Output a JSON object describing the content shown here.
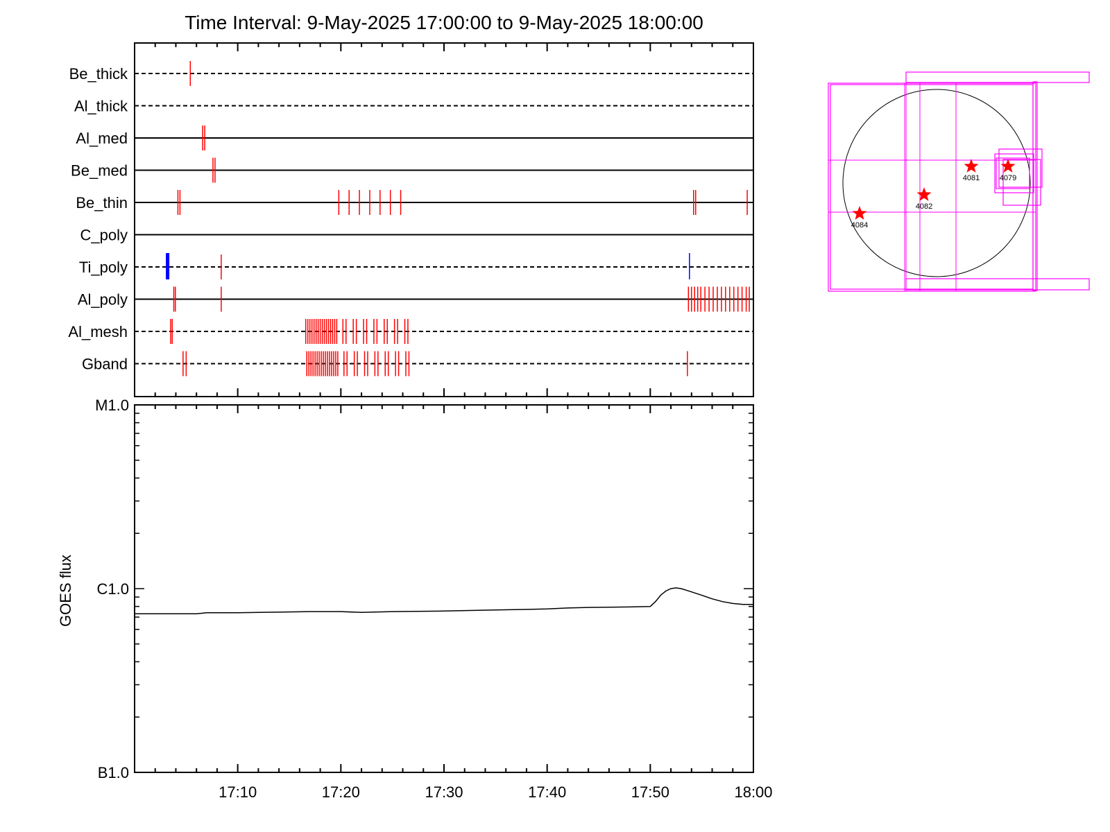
{
  "title": "Time Interval:  9-May-2025 17:00:00 to  9-May-2025 18:00:00",
  "colors": {
    "line": "#000000",
    "red_event": "#ff0000",
    "blue_event": "#0000ff",
    "fov_box": "#ff00ff",
    "star": "#ff0000"
  },
  "chart_data": [
    {
      "type": "scatter",
      "name": "filter timeline",
      "x_unit": "minutes after 17:00",
      "xlim": [
        0,
        60
      ],
      "categories": [
        "Be_thick",
        "Al_thick",
        "Al_med",
        "Be_med",
        "Be_thin",
        "C_poly",
        "Ti_poly",
        "Al_poly",
        "Al_mesh",
        "Gband"
      ],
      "line_style": [
        "dashed",
        "dashed",
        "solid",
        "solid",
        "solid",
        "solid",
        "dashed",
        "solid",
        "dashed",
        "dashed"
      ],
      "events": {
        "Be_thick": {
          "red": [
            5.4
          ]
        },
        "Al_thick": {
          "red": []
        },
        "Al_med": {
          "red": [
            6.6,
            6.8
          ]
        },
        "Be_med": {
          "red": [
            7.6,
            7.8
          ]
        },
        "Be_thin": {
          "red": [
            4.2,
            4.4,
            19.8,
            20.8,
            21.8,
            22.8,
            23.8,
            24.8,
            25.8,
            54.2,
            54.4,
            59.4
          ]
        },
        "C_poly": {
          "red": []
        },
        "Ti_poly": {
          "red": [
            8.4
          ],
          "blue_thick": [
            3.2
          ],
          "blue": [
            53.8
          ]
        },
        "Al_poly": {
          "red": [
            3.8,
            3.95,
            8.4,
            53.7,
            54.0,
            54.3,
            54.6,
            54.9,
            55.3,
            55.7,
            56.1,
            56.5,
            56.9,
            57.3,
            57.7,
            58.1,
            58.5,
            58.9,
            59.3,
            59.6
          ]
        },
        "Al_mesh": {
          "red": [
            3.5,
            3.65,
            16.6,
            16.8,
            17.0,
            17.2,
            17.4,
            17.6,
            17.8,
            18.0,
            18.2,
            18.4,
            18.6,
            18.8,
            19.0,
            19.2,
            19.4,
            19.6,
            20.2,
            20.5,
            21.2,
            21.5,
            22.2,
            22.5,
            23.2,
            23.5,
            24.2,
            24.5,
            25.2,
            25.5,
            26.2,
            26.5
          ]
        },
        "Gband": {
          "red": [
            4.7,
            5.0,
            16.7,
            16.9,
            17.1,
            17.3,
            17.5,
            17.7,
            17.9,
            18.1,
            18.3,
            18.5,
            18.7,
            18.9,
            19.1,
            19.3,
            19.5,
            19.7,
            20.3,
            20.6,
            21.3,
            21.6,
            22.3,
            22.6,
            23.3,
            23.6,
            24.3,
            24.6,
            25.3,
            25.6,
            26.3,
            26.6,
            53.6
          ]
        }
      }
    },
    {
      "type": "line",
      "x_unit": "minutes after 17:00",
      "xlim": [
        0,
        60
      ],
      "x_tick_labels": [
        "17:10",
        "17:20",
        "17:30",
        "17:40",
        "17:50",
        "18:00"
      ],
      "x_tick_values": [
        10,
        20,
        30,
        40,
        50,
        60
      ],
      "ylabel": "GOES flux",
      "yscale": "log",
      "ylim": [
        1e-07,
        1e-05
      ],
      "y_tick_labels": [
        "B1.0",
        "C1.0",
        "M1.0"
      ],
      "y_tick_values": [
        1e-07,
        1e-06,
        1e-05
      ],
      "x": [
        0,
        3,
        6,
        7,
        10,
        14,
        17,
        20,
        22,
        25,
        30,
        35,
        40,
        42,
        44,
        48,
        50,
        50.5,
        51,
        51.5,
        52,
        52.5,
        53,
        53.5,
        54,
        55,
        56,
        57,
        58,
        59,
        60
      ],
      "y": [
        7.3e-07,
        7.3e-07,
        7.3e-07,
        7.4e-07,
        7.4e-07,
        7.45e-07,
        7.5e-07,
        7.5e-07,
        7.42e-07,
        7.5e-07,
        7.55e-07,
        7.65e-07,
        7.75e-07,
        7.85e-07,
        7.9e-07,
        7.95e-07,
        8e-07,
        8.5e-07,
        9.2e-07,
        9.7e-07,
        1e-06,
        1.01e-06,
        1e-06,
        9.8e-07,
        9.6e-07,
        9.2e-07,
        8.8e-07,
        8.5e-07,
        8.3e-07,
        8.2e-07,
        8.2e-07
      ]
    }
  ],
  "sun_map": {
    "regions": [
      {
        "label": "4084"
      },
      {
        "label": "4082"
      },
      {
        "label": "4081"
      },
      {
        "label": "4079"
      }
    ]
  }
}
